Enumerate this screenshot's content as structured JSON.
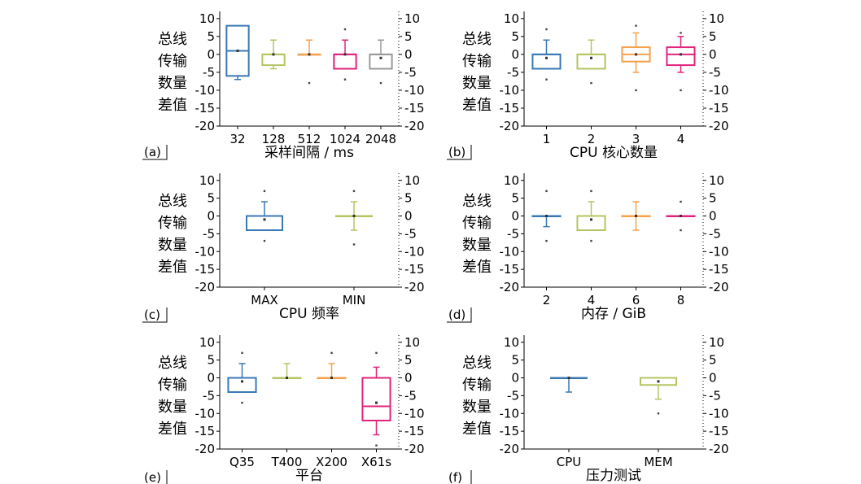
{
  "figure": {
    "yticks": [
      10,
      5,
      0,
      -5,
      -10,
      -15,
      -20
    ],
    "ylim": [
      -20,
      12
    ],
    "ylabel_lines": [
      "总线",
      "传输",
      "数量",
      "差值"
    ]
  },
  "colors": {
    "blue": "#3a78b5",
    "olive": "#b5c462",
    "orange": "#f5a04a",
    "pink": "#e0247a",
    "gray": "#9a9a9a"
  },
  "chart_data": [
    {
      "type": "box",
      "panel_label": "(a)",
      "xlabel": "采样间隔 / ms",
      "categories": [
        "32",
        "128",
        "512",
        "1024",
        "2048"
      ],
      "ylim": [
        -20,
        12
      ],
      "boxes": [
        {
          "q1": -6,
          "median": 1,
          "q3": 8,
          "whisker_low": -7,
          "whisker_high": 8,
          "mean": 1,
          "outliers": [],
          "color": "blue"
        },
        {
          "q1": -3,
          "median": 0,
          "q3": 0,
          "whisker_low": -4,
          "whisker_high": 4,
          "mean": 0,
          "outliers": [],
          "color": "olive"
        },
        {
          "q1": 0,
          "median": 0,
          "q3": 0,
          "whisker_low": 0,
          "whisker_high": 4,
          "mean": 0,
          "outliers": [
            -8
          ],
          "color": "orange"
        },
        {
          "q1": -4,
          "median": 0,
          "q3": 0,
          "whisker_low": -4,
          "whisker_high": 4,
          "mean": 0,
          "outliers": [
            7,
            -7
          ],
          "color": "pink"
        },
        {
          "q1": -4,
          "median": 0,
          "q3": 0,
          "whisker_low": -4,
          "whisker_high": 4,
          "mean": -1,
          "outliers": [
            -8
          ],
          "color": "gray"
        }
      ]
    },
    {
      "type": "box",
      "panel_label": "(b)",
      "xlabel": "CPU 核心数量",
      "categories": [
        "1",
        "2",
        "3",
        "4"
      ],
      "ylim": [
        -20,
        12
      ],
      "boxes": [
        {
          "q1": -4,
          "median": 0,
          "q3": 0,
          "whisker_low": -4,
          "whisker_high": 4,
          "mean": -1,
          "outliers": [
            7,
            -7
          ],
          "color": "blue"
        },
        {
          "q1": -4,
          "median": 0,
          "q3": 0,
          "whisker_low": -4,
          "whisker_high": 4,
          "mean": -1,
          "outliers": [
            -8
          ],
          "color": "olive"
        },
        {
          "q1": -2,
          "median": 0,
          "q3": 2,
          "whisker_low": -5,
          "whisker_high": 6,
          "mean": 0,
          "outliers": [
            8,
            -10
          ],
          "color": "orange"
        },
        {
          "q1": -3,
          "median": 0,
          "q3": 2,
          "whisker_low": -5,
          "whisker_high": 5,
          "mean": 0,
          "outliers": [
            6,
            -10
          ],
          "color": "pink"
        }
      ]
    },
    {
      "type": "box",
      "panel_label": "(c)",
      "xlabel": "CPU 频率",
      "categories": [
        "MAX",
        "MIN"
      ],
      "ylim": [
        -20,
        12
      ],
      "boxes": [
        {
          "q1": -4,
          "median": 0,
          "q3": 0,
          "whisker_low": -4,
          "whisker_high": 4,
          "mean": -1,
          "outliers": [
            7,
            -7
          ],
          "color": "blue"
        },
        {
          "q1": 0,
          "median": 0,
          "q3": 0,
          "whisker_low": -4,
          "whisker_high": 4,
          "mean": 0,
          "outliers": [
            7,
            -8
          ],
          "color": "olive"
        }
      ]
    },
    {
      "type": "box",
      "panel_label": "(d)",
      "xlabel": "内存 / GiB",
      "categories": [
        "2",
        "4",
        "6",
        "8"
      ],
      "ylim": [
        -20,
        12
      ],
      "boxes": [
        {
          "q1": 0,
          "median": 0,
          "q3": 0,
          "whisker_low": -3,
          "whisker_high": 0,
          "mean": 0,
          "outliers": [
            7,
            -7
          ],
          "color": "blue"
        },
        {
          "q1": -4,
          "median": 0,
          "q3": 0,
          "whisker_low": -4,
          "whisker_high": 4,
          "mean": -1,
          "outliers": [
            7,
            -7
          ],
          "color": "olive"
        },
        {
          "q1": 0,
          "median": 0,
          "q3": 0,
          "whisker_low": -4,
          "whisker_high": 4,
          "mean": 0,
          "outliers": [],
          "color": "orange"
        },
        {
          "q1": 0,
          "median": 0,
          "q3": 0,
          "whisker_low": 0,
          "whisker_high": 0,
          "mean": 0,
          "outliers": [
            4,
            -4
          ],
          "color": "pink"
        }
      ]
    },
    {
      "type": "box",
      "panel_label": "(e)",
      "xlabel": "平台",
      "categories": [
        "Q35",
        "T400",
        "X200",
        "X61s"
      ],
      "ylim": [
        -20,
        12
      ],
      "boxes": [
        {
          "q1": -4,
          "median": 0,
          "q3": 0,
          "whisker_low": -4,
          "whisker_high": 4,
          "mean": -1,
          "outliers": [
            7,
            -7
          ],
          "color": "blue"
        },
        {
          "q1": 0,
          "median": 0,
          "q3": 0,
          "whisker_low": 0,
          "whisker_high": 4,
          "mean": 0,
          "outliers": [],
          "color": "olive"
        },
        {
          "q1": 0,
          "median": 0,
          "q3": 0,
          "whisker_low": 0,
          "whisker_high": 4,
          "mean": 0,
          "outliers": [
            7
          ],
          "color": "orange"
        },
        {
          "q1": -12,
          "median": -8,
          "q3": 0,
          "whisker_low": -16,
          "whisker_high": 3,
          "mean": -7,
          "outliers": [
            7,
            -19
          ],
          "color": "pink"
        }
      ]
    },
    {
      "type": "box",
      "panel_label": "(f)",
      "xlabel": "压力测试",
      "categories": [
        "CPU",
        "MEM"
      ],
      "ylim": [
        -20,
        12
      ],
      "boxes": [
        {
          "q1": 0,
          "median": 0,
          "q3": 0,
          "whisker_low": -4,
          "whisker_high": 0,
          "mean": 0,
          "outliers": [],
          "color": "blue"
        },
        {
          "q1": -2,
          "median": 0,
          "q3": 0,
          "whisker_low": -6,
          "whisker_high": 0,
          "mean": -1,
          "outliers": [
            -10
          ],
          "color": "olive"
        }
      ]
    }
  ]
}
